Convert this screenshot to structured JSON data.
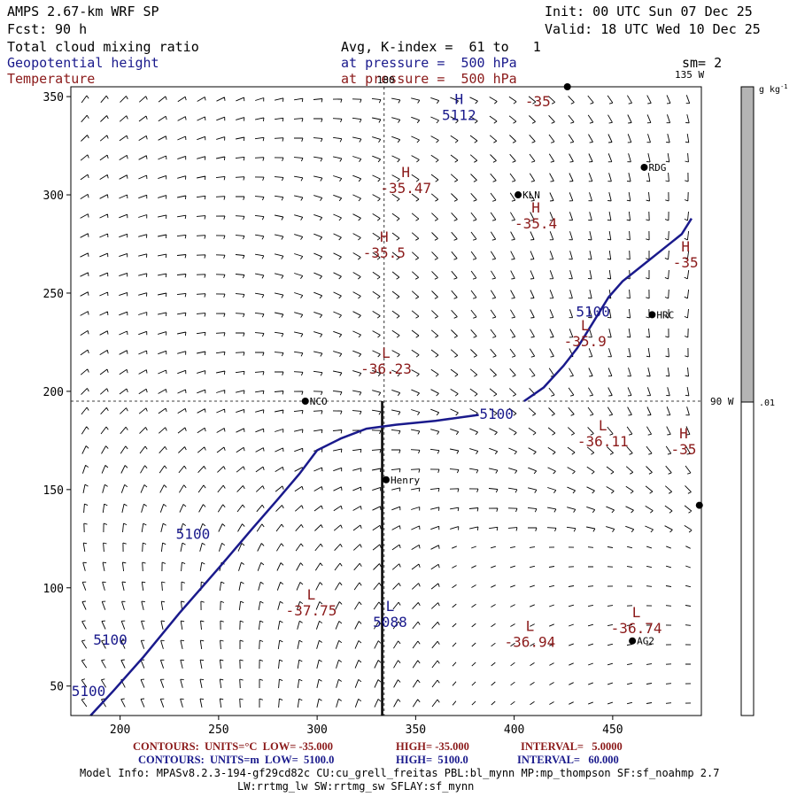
{
  "header": {
    "model": "AMPS 2.67-km WRF SP",
    "fcst_label": "Fcst:",
    "fcst_value": "90 h",
    "init": "Init: 00 UTC Sun 07 Dec 25",
    "valid": "Valid: 18 UTC Wed 10 Dec 25",
    "field1": "Total cloud mixing ratio",
    "field2": "Geopotential height",
    "field3": "Temperature",
    "avg": "Avg, K-index =  61 to   1",
    "press1": "at pressure =  500 hPa",
    "press2": "at pressure =  500 hPa",
    "sm": "sm= 2"
  },
  "colorbar": {
    "unit": "g kg",
    "unit_exp": "-1",
    "label": ".01",
    "fill_color": "#b4b4b4"
  },
  "colors": {
    "height_contour": "#1a1a8c",
    "temp_label": "#8b1a1a",
    "barb": "#000000"
  },
  "chart_data": {
    "type": "line",
    "xlim": [
      175,
      495
    ],
    "ylim": [
      35,
      355
    ],
    "x_ticks": [
      200,
      250,
      300,
      350,
      400,
      450
    ],
    "y_ticks": [
      50,
      100,
      150,
      200,
      250,
      300,
      350
    ],
    "grid_lines": [
      {
        "orientation": "vertical",
        "x": 334,
        "label": "180"
      },
      {
        "orientation": "horizontal",
        "y": 195,
        "label": "90 W"
      }
    ],
    "corner_label": "135 W",
    "height_contour": {
      "level": 5100,
      "segments": [
        [
          [
            185,
            35
          ],
          [
            197,
            48
          ],
          [
            212,
            65
          ],
          [
            230,
            87
          ],
          [
            250,
            110
          ],
          [
            267,
            130
          ],
          [
            280,
            145
          ],
          [
            291,
            158
          ],
          [
            300,
            170
          ],
          [
            312,
            176
          ],
          [
            325,
            181
          ],
          [
            340,
            183
          ],
          [
            360,
            185
          ],
          [
            382,
            188
          ]
        ],
        [
          [
            405,
            195
          ],
          [
            415,
            202
          ],
          [
            425,
            213
          ],
          [
            432,
            222
          ],
          [
            440,
            235
          ],
          [
            448,
            248
          ],
          [
            455,
            256
          ],
          [
            465,
            264
          ],
          [
            475,
            272
          ],
          [
            485,
            280
          ],
          [
            490,
            288
          ]
        ]
      ],
      "labels": [
        {
          "text": "5100",
          "x": 184,
          "y": 45
        },
        {
          "text": "5100",
          "x": 195,
          "y": 71
        },
        {
          "text": "5100",
          "x": 237,
          "y": 125
        },
        {
          "text": "5100",
          "x": 391,
          "y": 186
        },
        {
          "text": "5100",
          "x": 440,
          "y": 238
        }
      ]
    },
    "highs_lows": [
      {
        "kind": "H",
        "value": "5112",
        "x": 372,
        "y": 338,
        "type": "height"
      },
      {
        "kind": "L",
        "value": "5088",
        "x": 337,
        "y": 80,
        "type": "height"
      },
      {
        "kind": "H",
        "value": "-35.47",
        "x": 345,
        "y": 301,
        "type": "temp"
      },
      {
        "kind": "H",
        "value": "-35.4",
        "x": 411,
        "y": 283,
        "type": "temp"
      },
      {
        "kind": "H",
        "value": "-35.5",
        "x": 334,
        "y": 268,
        "type": "temp"
      },
      {
        "kind": "H",
        "value": "-35",
        "x": 487,
        "y": 263,
        "type": "temp"
      },
      {
        "kind": "H",
        "value": "-35",
        "x": 486,
        "y": 168,
        "type": "temp"
      },
      {
        "kind": "L",
        "value": "-36.23",
        "x": 335,
        "y": 209,
        "type": "temp"
      },
      {
        "kind": "L",
        "value": "-35.9",
        "x": 436,
        "y": 223,
        "type": "temp"
      },
      {
        "kind": "L",
        "value": "-36.11",
        "x": 445,
        "y": 172,
        "type": "temp"
      },
      {
        "kind": "L",
        "value": "-37.75",
        "x": 297,
        "y": 86,
        "type": "temp"
      },
      {
        "kind": "L",
        "value": "-36.94",
        "x": 408,
        "y": 70,
        "type": "temp"
      },
      {
        "kind": "L",
        "value": "-36.74",
        "x": 462,
        "y": 77,
        "type": "temp"
      },
      {
        "kind": "",
        "value": "-35",
        "x": 412,
        "y": 345,
        "type": "temp"
      }
    ],
    "stations": [
      {
        "name": "NCO",
        "x": 294,
        "y": 195
      },
      {
        "name": "KLN",
        "x": 402,
        "y": 300
      },
      {
        "name": "RDG",
        "x": 466,
        "y": 314
      },
      {
        "name": "HRC",
        "x": 470,
        "y": 239
      },
      {
        "name": "Henry",
        "x": 335,
        "y": 155
      },
      {
        "name": "AG2",
        "x": 460,
        "y": 73
      },
      {
        "name": "",
        "x": 427,
        "y": 355
      },
      {
        "name": "",
        "x": 494,
        "y": 142
      }
    ],
    "meridian_bold": {
      "x": 333,
      "y_start": 35,
      "y_end": 195
    }
  },
  "footer": {
    "row1_label": "CONTOURS:  UNITS=°C  LOW= -35.000",
    "row1_high": "HIGH= -35.000",
    "row1_int": "INTERVAL=   5.0000",
    "row2_label": "CONTOURS:  UNITS=m  LOW=  5100.0",
    "row2_high": "HIGH=  5100.0",
    "row2_int": "INTERVAL=   60.000",
    "model_info1": "Model Info: MPASv8.2.3-194-gf29cd82c CU:cu_grell_freitas PBL:bl_mynn MP:mp_thompson SF:sf_noahmp 2.7",
    "model_info2": "LW:rrtmg_lw SW:rrtmg_sw SFLAY:sf_mynn"
  }
}
